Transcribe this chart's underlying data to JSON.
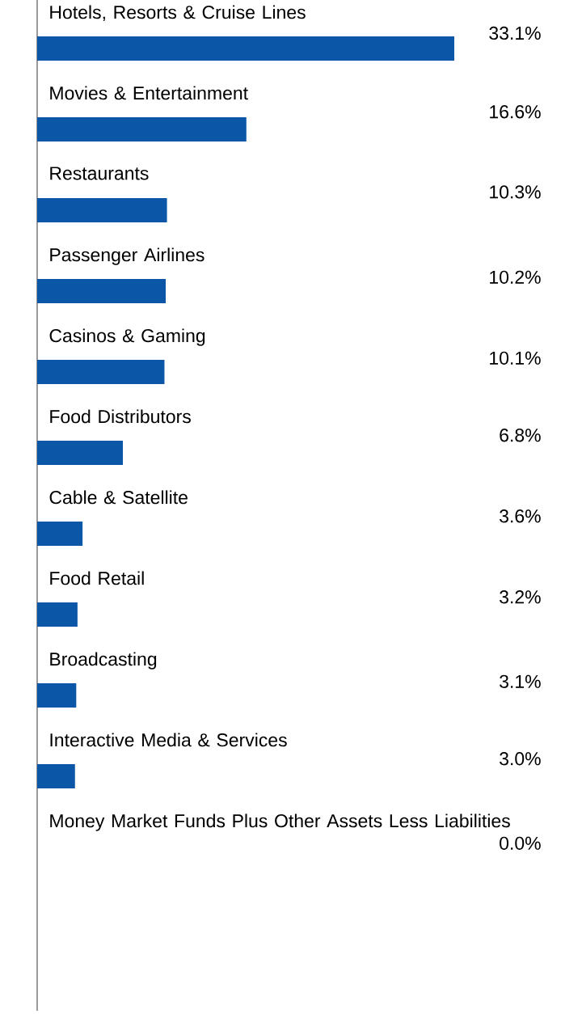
{
  "chart_data": {
    "type": "bar",
    "orientation": "horizontal",
    "color": "#0b56a6",
    "categories": [
      "Hotels, Resorts & Cruise Lines",
      "Movies & Entertainment",
      "Restaurants",
      "Passenger Airlines",
      "Casinos & Gaming",
      "Food Distributors",
      "Cable & Satellite",
      "Food Retail",
      "Broadcasting",
      "Interactive Media & Services",
      "Money Market Funds Plus Other Assets Less Liabilities"
    ],
    "values": [
      33.1,
      16.6,
      10.3,
      10.2,
      10.1,
      6.8,
      3.6,
      3.2,
      3.1,
      3.0,
      0.0
    ],
    "value_labels": [
      "33.1%",
      "16.6%",
      "10.3%",
      "10.2%",
      "10.1%",
      "6.8%",
      "3.6%",
      "3.2%",
      "3.1%",
      "3.0%",
      "0.0%"
    ]
  }
}
